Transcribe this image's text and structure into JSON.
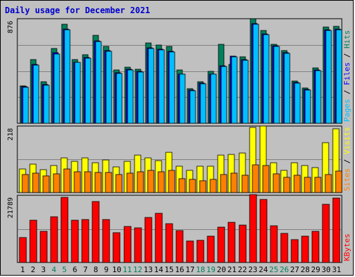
{
  "colors": {
    "background": "#c0c0c0",
    "title": "#0000cc",
    "hits": "#00805c",
    "files": "#0000ff",
    "pages": "#00c0ff",
    "visits": "#ffff00",
    "sites": "#ff8000",
    "kbytes": "#ff0000",
    "weekday_label": "#000000",
    "weekend_label": "#00805c"
  },
  "chart_data": {
    "type": "bar",
    "title": "Daily usage for December 2021",
    "categories": [
      "1",
      "2",
      "3",
      "4",
      "5",
      "6",
      "7",
      "8",
      "9",
      "10",
      "11",
      "12",
      "13",
      "14",
      "15",
      "16",
      "17",
      "18",
      "19",
      "20",
      "21",
      "22",
      "23",
      "24",
      "25",
      "26",
      "27",
      "28",
      "29",
      "30",
      "31"
    ],
    "weekend_days": [
      "4",
      "5",
      "11",
      "12",
      "18",
      "19",
      "25",
      "26"
    ],
    "panels": [
      {
        "name": "hits-files-pages",
        "ymax_label": "876",
        "ymax": 876,
        "side_labels": [
          {
            "text": "Pages",
            "color": "#00c0ff"
          },
          {
            "text": " / ",
            "color": "#000000"
          },
          {
            "text": "Files",
            "color": "#0000ff"
          },
          {
            "text": " / ",
            "color": "#000000"
          },
          {
            "text": "Hits",
            "color": "#00805c"
          }
        ],
        "series": [
          {
            "name": "Hits",
            "color": "#00805c",
            "values": [
              320,
              540,
              350,
              635,
              840,
              540,
              580,
              745,
              650,
              450,
              475,
              460,
              680,
              665,
              650,
              450,
              295,
              350,
              440,
              670,
              500,
              565,
              885,
              785,
              670,
              615,
              360,
              300,
              470,
              815,
              825
            ]
          },
          {
            "name": "Files",
            "color": "#0000ff",
            "values": [
              310,
              500,
              330,
              600,
              800,
              520,
              560,
              700,
              620,
              430,
              460,
              440,
              640,
              630,
              610,
              420,
              280,
              340,
              420,
              490,
              570,
              540,
              845,
              760,
              660,
              600,
              345,
              290,
              450,
              795,
              800
            ]
          },
          {
            "name": "Pages",
            "color": "#00c0ff",
            "values": [
              305,
              495,
              325,
              590,
              795,
              515,
              555,
              695,
              610,
              425,
              455,
              435,
              635,
              625,
              605,
              415,
              275,
              335,
              415,
              485,
              565,
              535,
              840,
              755,
              655,
              595,
              340,
              285,
              445,
              790,
              795
            ]
          }
        ]
      },
      {
        "name": "visits-sites",
        "ymax_label": "218",
        "ymax": 218,
        "side_labels": [
          {
            "text": "Sites",
            "color": "#ff8000"
          },
          {
            "text": " / ",
            "color": "#000000"
          },
          {
            "text": "Visits",
            "color": "#ffff00"
          }
        ],
        "series": [
          {
            "name": "Visits",
            "color": "#ffff00",
            "values": [
              80,
              95,
              77,
              90,
              115,
              105,
              117,
              100,
              110,
              85,
              105,
              125,
              115,
              107,
              135,
              88,
              75,
              88,
              88,
              125,
              128,
              133,
              218,
              222,
              100,
              75,
              100,
              90,
              83,
              168,
              213
            ]
          },
          {
            "name": "Sites",
            "color": "#ff8000",
            "values": [
              60,
              65,
              55,
              63,
              80,
              70,
              70,
              67,
              68,
              60,
              66,
              70,
              75,
              70,
              75,
              47,
              45,
              40,
              45,
              60,
              66,
              57,
              93,
              90,
              62,
              50,
              57,
              52,
              50,
              60,
              72
            ]
          }
        ]
      },
      {
        "name": "kbytes",
        "ymax_label": "21789",
        "ymax": 21789,
        "side_labels": [
          {
            "text": "KBytes",
            "color": "#ff0000"
          }
        ],
        "series": [
          {
            "name": "KBytes",
            "color": "#ff0000",
            "values": [
              8300,
              14000,
              10300,
              15200,
              21500,
              14000,
              14300,
              20200,
              14200,
              9800,
              11900,
              11500,
              14800,
              16200,
              12800,
              10500,
              7000,
              7300,
              8700,
              11800,
              13200,
              12400,
              22400,
              20900,
              12200,
              9700,
              7600,
              8700,
              10300,
              19200,
              21400
            ]
          }
        ]
      }
    ],
    "grid": true,
    "legend": "right-vertical"
  }
}
